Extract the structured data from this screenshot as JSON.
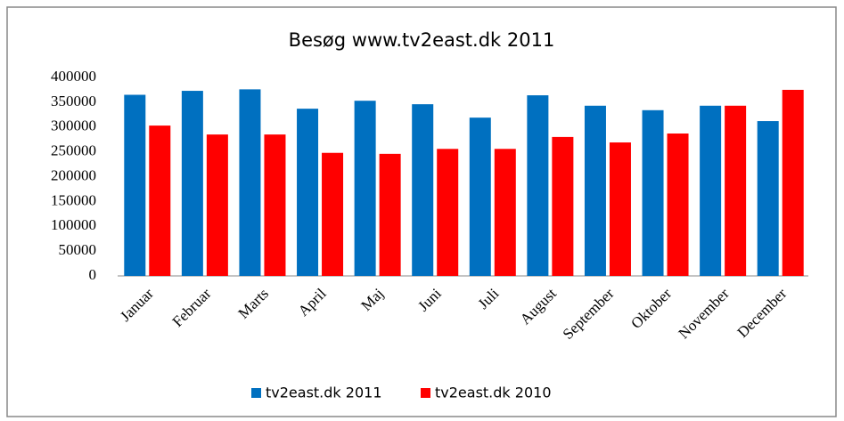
{
  "chart_data": {
    "type": "bar",
    "title": "Besøg www.tv2east.dk 2011",
    "categories": [
      "Januar",
      "Februar",
      "Marts",
      "April",
      "Maj",
      "Juni",
      "Juli",
      "August",
      "September",
      "Oktober",
      "November",
      "December"
    ],
    "series": [
      {
        "name": "tv2east.dk 2011",
        "color": "#0070c0",
        "values": [
          365000,
          373000,
          376000,
          337000,
          353000,
          346000,
          319000,
          364000,
          343000,
          334000,
          343000,
          312000
        ]
      },
      {
        "name": "tv2east.dk 2010",
        "color": "#ff0000",
        "values": [
          303000,
          285000,
          285000,
          248000,
          246000,
          256000,
          256000,
          280000,
          269000,
          287000,
          343000,
          375000
        ]
      }
    ],
    "ylim": [
      0,
      400000
    ],
    "yticks": [
      0,
      50000,
      100000,
      150000,
      200000,
      250000,
      300000,
      350000,
      400000
    ],
    "grid": false,
    "legend": "bottom"
  }
}
